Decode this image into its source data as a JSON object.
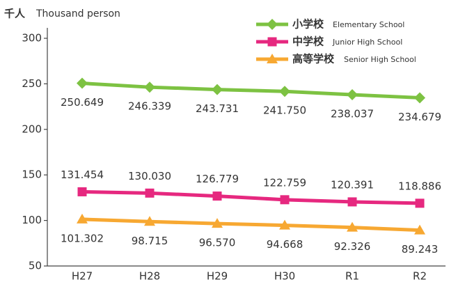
{
  "chart_data": {
    "type": "line",
    "y_unit": "千人",
    "y_unit_en": "Thousand person",
    "categories": [
      "H27",
      "H28",
      "H29",
      "H30",
      "R1",
      "R2"
    ],
    "series": [
      {
        "name": "小学校",
        "name_en": "Elementary School",
        "color": "#7dc242",
        "marker": "diamond",
        "values": [
          250.649,
          246.339,
          243.731,
          241.75,
          238.037,
          234.679
        ],
        "value_labels": [
          "250.649",
          "246.339",
          "243.731",
          "241.750",
          "238.037",
          "234.679"
        ]
      },
      {
        "name": "中学校",
        "name_en": "Junior High School",
        "color": "#e6287f",
        "marker": "square",
        "values": [
          131.454,
          130.03,
          126.779,
          122.759,
          120.391,
          118.886
        ],
        "value_labels": [
          "131.454",
          "130.030",
          "126.779",
          "122.759",
          "120.391",
          "118.886"
        ]
      },
      {
        "name": "高等学校",
        "name_en": "Senior High School",
        "color": "#f7a832",
        "marker": "triangle",
        "values": [
          101.302,
          98.715,
          96.57,
          94.668,
          92.326,
          89.243
        ],
        "value_labels": [
          "101.302",
          "98.715",
          "96.570",
          "94.668",
          "92.326",
          "89.243"
        ]
      }
    ],
    "ylim": [
      50,
      300
    ],
    "yticks": [
      50,
      100,
      150,
      200,
      250,
      300
    ],
    "grid": false
  }
}
